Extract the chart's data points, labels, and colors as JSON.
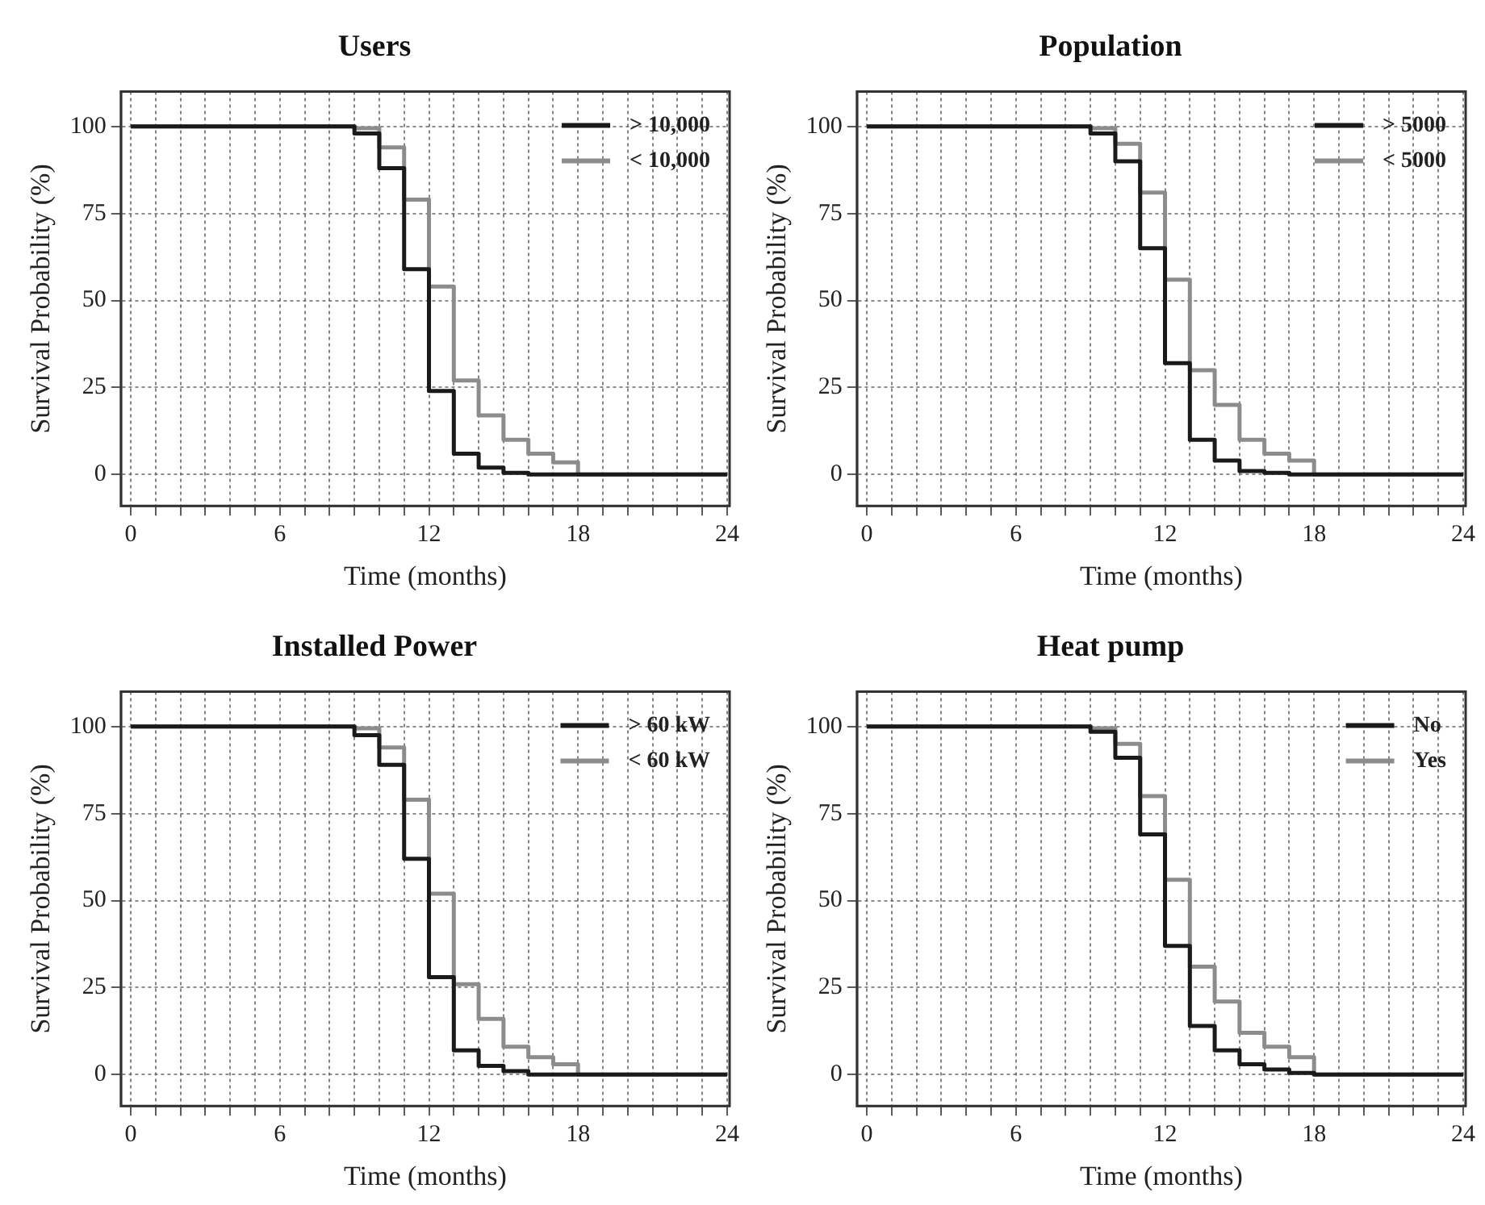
{
  "chart_data": [
    {
      "type": "step",
      "title": "Users",
      "xlabel": "Time (months)",
      "ylabel": "Survival Probability (%)",
      "xlim": [
        -0.4,
        24.1
      ],
      "xticks": [
        0,
        {
          "value": 1,
          "label": null
        },
        {
          "value": 2,
          "label": null
        },
        {
          "value": 3,
          "label": null
        },
        {
          "value": 4,
          "label": null
        },
        {
          "value": 5,
          "label": null
        },
        6,
        {
          "value": 7,
          "label": null
        },
        {
          "value": 8,
          "label": null
        },
        {
          "value": 9,
          "label": null
        },
        {
          "value": 10,
          "label": null
        },
        {
          "value": 11,
          "label": null
        },
        12,
        {
          "value": 13,
          "label": null
        },
        {
          "value": 14,
          "label": null
        },
        {
          "value": 15,
          "label": null
        },
        {
          "value": 16,
          "label": null
        },
        {
          "value": 17,
          "label": null
        },
        18,
        {
          "value": 19,
          "label": null
        },
        {
          "value": 20,
          "label": null
        },
        {
          "value": 21,
          "label": null
        },
        {
          "value": 22,
          "label": null
        },
        {
          "value": 23,
          "label": null
        },
        24
      ],
      "ylim": [
        -9,
        110
      ],
      "yticks": [
        0,
        25,
        50,
        75,
        100
      ],
      "grid": true,
      "legend": "top right",
      "x": [
        0,
        9,
        10,
        11,
        12,
        13,
        14,
        15,
        16,
        17,
        18,
        24
      ],
      "series": [
        {
          "name": "> 10,000",
          "color": "#1a1a1a",
          "values": [
            100,
            98,
            88,
            59,
            24,
            6,
            2,
            0.5,
            0,
            0,
            0,
            0
          ]
        },
        {
          "name": "< 10,000",
          "color": "#8c8c8c",
          "values": [
            100,
            99.5,
            94,
            79,
            54,
            27,
            17,
            10,
            6,
            3.5,
            0,
            0
          ]
        }
      ]
    },
    {
      "type": "step",
      "title": "Population",
      "xlabel": "Time (months)",
      "ylabel": "Survival Probability (%)",
      "xlim": [
        -0.4,
        24.1
      ],
      "xticks": [
        0,
        {
          "value": 1,
          "label": null
        },
        {
          "value": 2,
          "label": null
        },
        {
          "value": 3,
          "label": null
        },
        {
          "value": 4,
          "label": null
        },
        {
          "value": 5,
          "label": null
        },
        6,
        {
          "value": 7,
          "label": null
        },
        {
          "value": 8,
          "label": null
        },
        {
          "value": 9,
          "label": null
        },
        {
          "value": 10,
          "label": null
        },
        {
          "value": 11,
          "label": null
        },
        12,
        {
          "value": 13,
          "label": null
        },
        {
          "value": 14,
          "label": null
        },
        {
          "value": 15,
          "label": null
        },
        {
          "value": 16,
          "label": null
        },
        {
          "value": 17,
          "label": null
        },
        18,
        {
          "value": 19,
          "label": null
        },
        {
          "value": 20,
          "label": null
        },
        {
          "value": 21,
          "label": null
        },
        {
          "value": 22,
          "label": null
        },
        {
          "value": 23,
          "label": null
        },
        24
      ],
      "ylim": [
        -9,
        110
      ],
      "yticks": [
        0,
        25,
        50,
        75,
        100
      ],
      "grid": true,
      "legend": "top right",
      "x": [
        0,
        9,
        10,
        11,
        12,
        13,
        14,
        15,
        16,
        17,
        18,
        24
      ],
      "series": [
        {
          "name": "> 5000",
          "color": "#1a1a1a",
          "values": [
            100,
            98,
            90,
            65,
            32,
            10,
            4,
            1,
            0.5,
            0,
            0,
            0
          ]
        },
        {
          "name": "< 5000",
          "color": "#8c8c8c",
          "values": [
            100,
            99.5,
            95,
            81,
            56,
            30,
            20,
            10,
            6,
            4,
            0,
            0
          ]
        }
      ]
    },
    {
      "type": "step",
      "title": "Installed Power",
      "xlabel": "Time (months)",
      "ylabel": "Survival Probability (%)",
      "xlim": [
        -0.4,
        24.1
      ],
      "xticks": [
        0,
        {
          "value": 1,
          "label": null
        },
        {
          "value": 2,
          "label": null
        },
        {
          "value": 3,
          "label": null
        },
        {
          "value": 4,
          "label": null
        },
        {
          "value": 5,
          "label": null
        },
        6,
        {
          "value": 7,
          "label": null
        },
        {
          "value": 8,
          "label": null
        },
        {
          "value": 9,
          "label": null
        },
        {
          "value": 10,
          "label": null
        },
        {
          "value": 11,
          "label": null
        },
        12,
        {
          "value": 13,
          "label": null
        },
        {
          "value": 14,
          "label": null
        },
        {
          "value": 15,
          "label": null
        },
        {
          "value": 16,
          "label": null
        },
        {
          "value": 17,
          "label": null
        },
        18,
        {
          "value": 19,
          "label": null
        },
        {
          "value": 20,
          "label": null
        },
        {
          "value": 21,
          "label": null
        },
        {
          "value": 22,
          "label": null
        },
        {
          "value": 23,
          "label": null
        },
        24
      ],
      "ylim": [
        -9,
        110
      ],
      "yticks": [
        0,
        25,
        50,
        75,
        100
      ],
      "grid": true,
      "legend": "top right",
      "x": [
        0,
        9,
        10,
        11,
        12,
        13,
        14,
        15,
        16,
        17,
        18,
        24
      ],
      "series": [
        {
          "name": "> 60 kW",
          "color": "#1a1a1a",
          "values": [
            100,
            97.5,
            89,
            62,
            28,
            7,
            2.5,
            1,
            0,
            0,
            0,
            0
          ]
        },
        {
          "name": "< 60 kW",
          "color": "#8c8c8c",
          "values": [
            100,
            99.5,
            94,
            79,
            52,
            26,
            16,
            8,
            5,
            3,
            0,
            0
          ]
        }
      ]
    },
    {
      "type": "step",
      "title": "Heat pump",
      "xlabel": "Time (months)",
      "ylabel": "Survival Probability (%)",
      "xlim": [
        -0.4,
        24.1
      ],
      "xticks": [
        0,
        {
          "value": 1,
          "label": null
        },
        {
          "value": 2,
          "label": null
        },
        {
          "value": 3,
          "label": null
        },
        {
          "value": 4,
          "label": null
        },
        {
          "value": 5,
          "label": null
        },
        6,
        {
          "value": 7,
          "label": null
        },
        {
          "value": 8,
          "label": null
        },
        {
          "value": 9,
          "label": null
        },
        {
          "value": 10,
          "label": null
        },
        {
          "value": 11,
          "label": null
        },
        12,
        {
          "value": 13,
          "label": null
        },
        {
          "value": 14,
          "label": null
        },
        {
          "value": 15,
          "label": null
        },
        {
          "value": 16,
          "label": null
        },
        {
          "value": 17,
          "label": null
        },
        18,
        {
          "value": 19,
          "label": null
        },
        {
          "value": 20,
          "label": null
        },
        {
          "value": 21,
          "label": null
        },
        {
          "value": 22,
          "label": null
        },
        {
          "value": 23,
          "label": null
        },
        24
      ],
      "ylim": [
        -9,
        110
      ],
      "yticks": [
        0,
        25,
        50,
        75,
        100
      ],
      "grid": true,
      "legend": "top right",
      "x": [
        0,
        9,
        10,
        11,
        12,
        13,
        14,
        15,
        16,
        17,
        18,
        24
      ],
      "series": [
        {
          "name": "No",
          "color": "#1a1a1a",
          "values": [
            100,
            98.5,
            91,
            69,
            37,
            14,
            7,
            3,
            1.5,
            0.5,
            0,
            0
          ]
        },
        {
          "name": "Yes",
          "color": "#8c8c8c",
          "values": [
            100,
            99.5,
            95,
            80,
            56,
            31,
            21,
            12,
            8,
            5,
            0,
            0
          ]
        }
      ]
    }
  ]
}
